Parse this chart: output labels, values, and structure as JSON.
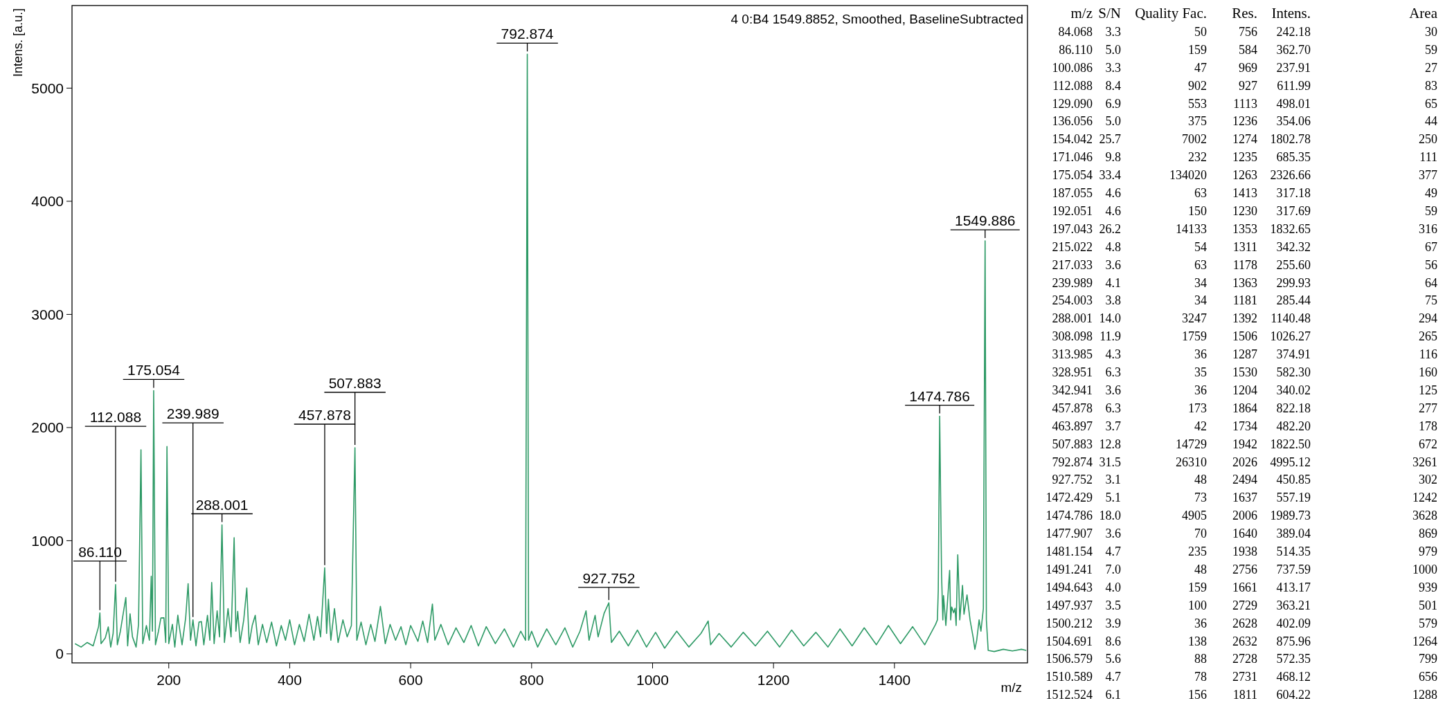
{
  "chart_data": [
    {
      "type": "line",
      "title": "4 0:B4 1549.8852, Smoothed, BaselineSubtracted",
      "xlabel": "m/z",
      "ylabel": "Intens. [a.u.]",
      "xlim": [
        40,
        1620
      ],
      "ylim": [
        -80,
        5730
      ],
      "xticks": [
        200,
        400,
        600,
        800,
        1000,
        1200,
        1400
      ],
      "yticks": [
        0,
        1000,
        2000,
        3000,
        4000,
        5000
      ],
      "grid": false,
      "series": [
        {
          "color": "#2e9a66",
          "x": [
            45,
            55,
            65,
            75,
            84,
            86.11,
            88,
            95,
            100,
            104,
            108,
            112.088,
            115,
            120,
            129,
            132,
            136,
            140,
            146,
            150,
            154.042,
            157,
            163,
            168,
            171,
            173,
            175.054,
            178,
            183,
            187,
            192,
            195,
            197.043,
            200,
            206,
            210,
            215,
            217,
            222,
            228,
            232,
            236,
            240,
            245,
            250,
            254,
            258,
            264,
            268,
            271,
            275,
            280,
            284,
            288.001,
            292,
            298,
            303,
            308.098,
            311,
            314,
            318,
            324,
            329,
            333,
            338,
            343,
            348,
            355,
            362,
            370,
            378,
            386,
            393,
            400,
            408,
            416,
            424,
            432,
            440,
            446,
            451,
            457.878,
            461,
            464,
            468,
            474,
            480,
            488,
            495,
            502,
            507.883,
            511,
            518,
            526,
            534,
            541,
            550,
            558,
            566,
            575,
            584,
            592,
            600,
            612,
            620,
            628,
            636,
            640,
            650,
            662,
            675,
            688,
            700,
            712,
            725,
            740,
            755,
            770,
            782,
            790,
            792.874,
            795,
            800,
            810,
            825,
            840,
            855,
            868,
            880,
            890,
            895,
            905,
            910,
            920,
            927.752,
            932,
            945,
            960,
            975,
            990,
            1005,
            1020,
            1040,
            1060,
            1080,
            1092,
            1096,
            1110,
            1130,
            1150,
            1170,
            1190,
            1210,
            1230,
            1250,
            1270,
            1290,
            1310,
            1330,
            1350,
            1370,
            1390,
            1410,
            1430,
            1450,
            1468,
            1471,
            1472.429,
            1474.786,
            1477.907,
            1480,
            1481.154,
            1485,
            1491.241,
            1493,
            1494.643,
            1497.937,
            1500.212,
            1502,
            1504.691,
            1506.579,
            1508,
            1510.589,
            1512.524,
            1515,
            1520,
            1525,
            1530,
            1533,
            1536,
            1540,
            1543,
            1547,
            1549.886,
            1552,
            1555,
            1565,
            1580,
            1595,
            1610,
            1618
          ],
          "values": [
            90,
            60,
            100,
            70,
            242,
            362,
            90,
            140,
            238,
            60,
            180,
            612,
            80,
            200,
            498,
            70,
            354,
            150,
            60,
            260,
            1803,
            90,
            250,
            120,
            685,
            200,
            2327,
            80,
            200,
            317,
            318,
            100,
            1833,
            90,
            260,
            60,
            342,
            256,
            80,
            320,
            620,
            120,
            300,
            70,
            280,
            285,
            80,
            340,
            120,
            630,
            90,
            380,
            150,
            1140,
            100,
            400,
            150,
            1026,
            200,
            375,
            100,
            300,
            582,
            90,
            250,
            340,
            80,
            260,
            100,
            280,
            70,
            250,
            120,
            300,
            80,
            260,
            110,
            350,
            120,
            330,
            150,
            760,
            180,
            482,
            120,
            400,
            100,
            300,
            150,
            250,
            1822,
            120,
            280,
            80,
            260,
            110,
            420,
            90,
            260,
            120,
            240,
            80,
            250,
            110,
            290,
            100,
            440,
            120,
            260,
            80,
            230,
            100,
            250,
            70,
            240,
            90,
            220,
            60,
            200,
            120,
            5300,
            120,
            200,
            60,
            220,
            80,
            230,
            60,
            200,
            380,
            120,
            340,
            150,
            360,
            451,
            100,
            200,
            70,
            210,
            60,
            190,
            50,
            200,
            60,
            180,
            290,
            80,
            180,
            60,
            190,
            70,
            200,
            60,
            210,
            70,
            190,
            60,
            220,
            70,
            230,
            80,
            250,
            90,
            240,
            80,
            260,
            300,
            557,
            2100,
            700,
            300,
            514,
            250,
            738,
            300,
            413,
            363,
            402,
            250,
            876,
            572,
            300,
            468,
            604,
            350,
            520,
            300,
            150,
            40,
            120,
            300,
            200,
            400,
            3650,
            300,
            30,
            20,
            40,
            25,
            40,
            30
          ]
        }
      ],
      "annotations": [
        {
          "text": "86.110",
          "x": 86.11,
          "y": 362
        },
        {
          "text": "112.088",
          "x": 112.088,
          "y": 612
        },
        {
          "text": "175.054",
          "x": 175.054,
          "y": 2327
        },
        {
          "text": "239.989",
          "x": 240,
          "y": 300
        },
        {
          "text": "288.001",
          "x": 288.001,
          "y": 1140
        },
        {
          "text": "457.878",
          "x": 457.878,
          "y": 760
        },
        {
          "text": "507.883",
          "x": 507.883,
          "y": 1822
        },
        {
          "text": "792.874",
          "x": 792.874,
          "y": 5300
        },
        {
          "text": "927.752",
          "x": 927.752,
          "y": 451
        },
        {
          "text": "1474.786",
          "x": 1474.786,
          "y": 2100
        },
        {
          "text": "1549.886",
          "x": 1549.886,
          "y": 3650
        }
      ]
    },
    {
      "type": "other",
      "categories": [
        "m/z",
        "S/N",
        "Quality Fac.",
        "Res.",
        "Intens.",
        "Area"
      ],
      "cell_labels": [
        [
          "84.068",
          "3.3",
          "50",
          "756",
          "242.18",
          "30"
        ],
        [
          "86.110",
          "5.0",
          "159",
          "584",
          "362.70",
          "59"
        ],
        [
          "100.086",
          "3.3",
          "47",
          "969",
          "237.91",
          "27"
        ],
        [
          "112.088",
          "8.4",
          "902",
          "927",
          "611.99",
          "83"
        ],
        [
          "129.090",
          "6.9",
          "553",
          "1113",
          "498.01",
          "65"
        ],
        [
          "136.056",
          "5.0",
          "375",
          "1236",
          "354.06",
          "44"
        ],
        [
          "154.042",
          "25.7",
          "7002",
          "1274",
          "1802.78",
          "250"
        ],
        [
          "171.046",
          "9.8",
          "232",
          "1235",
          "685.35",
          "111"
        ],
        [
          "175.054",
          "33.4",
          "134020",
          "1263",
          "2326.66",
          "377"
        ],
        [
          "187.055",
          "4.6",
          "63",
          "1413",
          "317.18",
          "49"
        ],
        [
          "192.051",
          "4.6",
          "150",
          "1230",
          "317.69",
          "59"
        ],
        [
          "197.043",
          "26.2",
          "14133",
          "1353",
          "1832.65",
          "316"
        ],
        [
          "215.022",
          "4.8",
          "54",
          "1311",
          "342.32",
          "67"
        ],
        [
          "217.033",
          "3.6",
          "63",
          "1178",
          "255.60",
          "56"
        ],
        [
          "239.989",
          "4.1",
          "34",
          "1363",
          "299.93",
          "64"
        ],
        [
          "254.003",
          "3.8",
          "34",
          "1181",
          "285.44",
          "75"
        ],
        [
          "288.001",
          "14.0",
          "3247",
          "1392",
          "1140.48",
          "294"
        ],
        [
          "308.098",
          "11.9",
          "1759",
          "1506",
          "1026.27",
          "265"
        ],
        [
          "313.985",
          "4.3",
          "36",
          "1287",
          "374.91",
          "116"
        ],
        [
          "328.951",
          "6.3",
          "35",
          "1530",
          "582.30",
          "160"
        ],
        [
          "342.941",
          "3.6",
          "36",
          "1204",
          "340.02",
          "125"
        ],
        [
          "457.878",
          "6.3",
          "173",
          "1864",
          "822.18",
          "277"
        ],
        [
          "463.897",
          "3.7",
          "42",
          "1734",
          "482.20",
          "178"
        ],
        [
          "507.883",
          "12.8",
          "14729",
          "1942",
          "1822.50",
          "672"
        ],
        [
          "792.874",
          "31.5",
          "26310",
          "2026",
          "4995.12",
          "3261"
        ],
        [
          "927.752",
          "3.1",
          "48",
          "2494",
          "450.85",
          "302"
        ],
        [
          "1472.429",
          "5.1",
          "73",
          "1637",
          "557.19",
          "1242"
        ],
        [
          "1474.786",
          "18.0",
          "4905",
          "2006",
          "1989.73",
          "3628"
        ],
        [
          "1477.907",
          "3.6",
          "70",
          "1640",
          "389.04",
          "869"
        ],
        [
          "1481.154",
          "4.7",
          "235",
          "1938",
          "514.35",
          "979"
        ],
        [
          "1491.241",
          "7.0",
          "48",
          "2756",
          "737.59",
          "1000"
        ],
        [
          "1494.643",
          "4.0",
          "159",
          "1661",
          "413.17",
          "939"
        ],
        [
          "1497.937",
          "3.5",
          "100",
          "2729",
          "363.21",
          "501"
        ],
        [
          "1500.212",
          "3.9",
          "36",
          "2628",
          "402.09",
          "579"
        ],
        [
          "1504.691",
          "8.6",
          "138",
          "2632",
          "875.96",
          "1264"
        ],
        [
          "1506.579",
          "5.6",
          "88",
          "2728",
          "572.35",
          "799"
        ],
        [
          "1510.589",
          "4.7",
          "78",
          "2731",
          "468.12",
          "656"
        ],
        [
          "1512.524",
          "6.1",
          "156",
          "1811",
          "604.22",
          "1288"
        ]
      ]
    }
  ]
}
